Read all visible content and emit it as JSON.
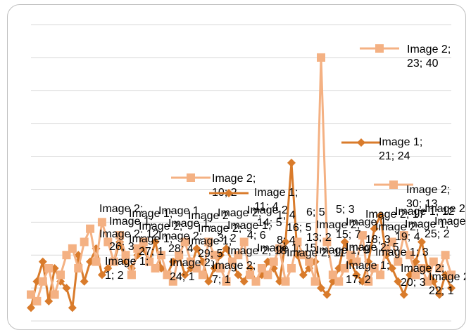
{
  "chart_data": {
    "type": "line",
    "grid": true,
    "ylim": [
      0,
      45
    ],
    "colors": {
      "Image 1": "#d97b2b",
      "Image 2": "#f4b183"
    },
    "series": [
      {
        "name": "Image 1",
        "x": [
          1,
          2,
          3,
          4,
          5,
          6,
          7,
          8,
          9,
          10,
          11,
          12,
          13,
          14,
          15,
          16,
          17,
          18,
          19,
          20,
          21,
          22,
          23,
          24,
          25,
          26,
          27,
          28,
          29,
          30,
          31,
          32,
          33,
          34,
          35,
          36,
          37,
          38,
          39,
          40,
          41,
          42,
          43,
          44,
          45,
          46,
          47,
          48,
          49,
          50,
          51,
          52,
          53,
          54,
          55,
          56,
          57,
          58,
          59,
          60,
          61,
          62,
          63,
          64,
          65,
          66,
          67,
          68,
          69,
          70,
          71,
          72
        ],
        "y": [
          2,
          6,
          9,
          3,
          8,
          6,
          5,
          2,
          10,
          6,
          9,
          11,
          7,
          8,
          9,
          12,
          9,
          8,
          10,
          11,
          9,
          12,
          8,
          7,
          9,
          10,
          7,
          8,
          11,
          9,
          6,
          8,
          10,
          11,
          9,
          7,
          6,
          8,
          6,
          7,
          9,
          8,
          6,
          12,
          24,
          10,
          7,
          8,
          9,
          5,
          4,
          6,
          8,
          12,
          9,
          7,
          6,
          9,
          14,
          16,
          10,
          8,
          6,
          4,
          7,
          9,
          12,
          8,
          6,
          4,
          7,
          5
        ],
        "callouts": [
          {
            "lines": [
              "Image 1;",
              "1; 2"
            ]
          },
          {
            "lines": [
              "Image 1;",
              "21; 24"
            ]
          },
          {
            "lines": [
              "Image 1;",
              "11; 4"
            ]
          },
          {
            "lines": [
              "Image 1;",
              "17; 2"
            ]
          }
        ]
      },
      {
        "name": "Image 2",
        "x": [
          1,
          2,
          3,
          4,
          5,
          6,
          7,
          8,
          9,
          10,
          11,
          12,
          13,
          14,
          15,
          16,
          17,
          18,
          19,
          20,
          21,
          22,
          23,
          24,
          25,
          26,
          27,
          28,
          29,
          30,
          31,
          32,
          33,
          34,
          35,
          36,
          37,
          38,
          39,
          40,
          41,
          42,
          43,
          44,
          45,
          46,
          47,
          48,
          49,
          50,
          51,
          52,
          53,
          54,
          55,
          56,
          57,
          58,
          59,
          60,
          61,
          62,
          63,
          64,
          65,
          66,
          67,
          68,
          69,
          70,
          71,
          72
        ],
        "y": [
          4,
          3,
          6,
          8,
          4,
          7,
          10,
          11,
          8,
          12,
          14,
          9,
          15,
          12,
          9,
          13,
          10,
          7,
          11,
          12,
          9,
          8,
          10,
          7,
          6,
          10,
          12,
          9,
          8,
          7,
          12,
          10,
          8,
          6,
          9,
          10,
          12,
          7,
          6,
          8,
          7,
          9,
          11,
          6,
          8,
          12,
          10,
          9,
          6,
          40,
          12,
          7,
          6,
          8,
          10,
          9,
          13,
          6,
          8,
          7,
          11,
          12,
          9,
          13,
          10,
          7,
          8,
          6,
          9,
          8,
          10,
          7
        ],
        "callouts": [
          {
            "lines": [
              "Image 2;",
              "23; 40"
            ]
          },
          {
            "lines": [
              "Image 2;",
              "10; 2"
            ]
          },
          {
            "lines": [
              "Image 2;",
              "30; 13"
            ]
          },
          {
            "lines": [
              "Image 2;",
              "24; 1"
            ]
          },
          {
            "lines": [
              "Image 2;",
              "7; 1"
            ]
          },
          {
            "lines": [
              "Image 2;",
              "20; 3"
            ]
          },
          {
            "lines": [
              "Image 2;",
              "22; 1"
            ]
          }
        ]
      }
    ],
    "clutter_labels": [
      "Image 2;",
      "Image 1;",
      "Image 1",
      "Image 2",
      "Image 2;",
      "Image 2",
      "1; 4",
      "6; 5",
      "5; 3",
      "Image 2; 17",
      "Image 1; 12",
      "Image 2; 16",
      "Image 1;",
      "Image 2;",
      "Image 1;",
      "Image 2;",
      "Image 1;",
      "14; 5",
      "16; 5",
      "Image 2;",
      "Image 1;",
      "Image 2;",
      "Image 1;",
      "Image 2;",
      "Image 2; 12",
      "Image 1;",
      "Image 2;",
      "Image 1;",
      "3; 2",
      "4; 6",
      "8; 4",
      "13; 2",
      "15; 7",
      "18; 3",
      "19; 4",
      "25; 2",
      "26; 3",
      "27; 1",
      "28; 4",
      "29; 5",
      "Image 2; 18",
      "Image 1; 15",
      "Image 2; 11",
      "Image 1; 9",
      "Image 2; 5",
      "Image 1; 3"
    ]
  }
}
